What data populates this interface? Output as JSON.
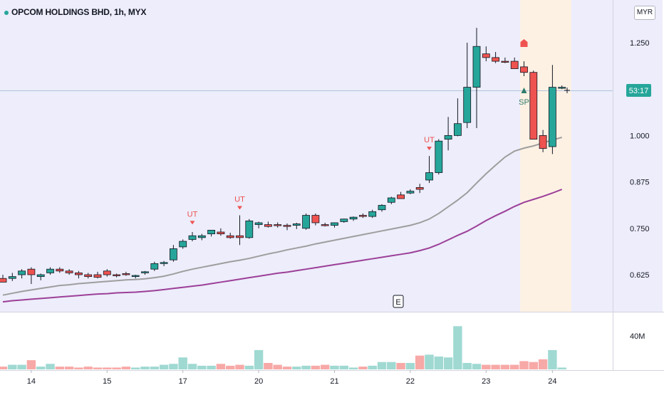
{
  "header": {
    "title": "OPCOM HOLDINGS BHD, 1h, MYX",
    "currency": "MYR"
  },
  "price_axis": {
    "ticks": [
      "1.250",
      "1.000",
      "0.875",
      "0.750",
      "0.625"
    ],
    "countdown": "53:17"
  },
  "volume_axis": {
    "tick": "40M"
  },
  "time_axis": {
    "ticks": [
      "14",
      "15",
      "17",
      "20",
      "21",
      "22",
      "23",
      "24"
    ]
  },
  "markers": {
    "ut": "UT",
    "sp": "SP",
    "event": "E"
  },
  "colors": {
    "up": "#26a69a",
    "down": "#ef5350",
    "ma_fast": "#9e9e9e",
    "ma_slow": "#9c3f98",
    "bg_main": "#ededfb",
    "bg_highlight": "#fdf1e4",
    "crosshair": "#b0c4de"
  },
  "chart_data": {
    "type": "candlestick",
    "title": "OPCOM HOLDINGS BHD, 1h, MYX",
    "y_range": [
      0.56,
      1.32
    ],
    "series": [
      {
        "name": "",
        "type": "ohlc",
        "values": [
          [
            0.615,
            0.625,
            0.608,
            0.605
          ],
          [
            0.615,
            0.63,
            0.608,
            0.62
          ],
          [
            0.625,
            0.64,
            0.615,
            0.635
          ],
          [
            0.64,
            0.645,
            0.6,
            0.625
          ],
          [
            0.62,
            0.628,
            0.61,
            0.625
          ],
          [
            0.63,
            0.645,
            0.625,
            0.64
          ],
          [
            0.64,
            0.645,
            0.63,
            0.635
          ],
          [
            0.635,
            0.64,
            0.625,
            0.63
          ],
          [
            0.63,
            0.635,
            0.615,
            0.625
          ],
          [
            0.625,
            0.63,
            0.615,
            0.62
          ],
          [
            0.625,
            0.633,
            0.615,
            0.618
          ],
          [
            0.635,
            0.64,
            0.62,
            0.625
          ],
          [
            0.625,
            0.628,
            0.618,
            0.623
          ],
          [
            0.628,
            0.633,
            0.622,
            0.625
          ],
          [
            0.62,
            0.625,
            0.615,
            0.623
          ],
          [
            0.63,
            0.635,
            0.625,
            0.633
          ],
          [
            0.64,
            0.66,
            0.635,
            0.655
          ],
          [
            0.655,
            0.662,
            0.648,
            0.658
          ],
          [
            0.665,
            0.705,
            0.66,
            0.695
          ],
          [
            0.7,
            0.72,
            0.695,
            0.715
          ],
          [
            0.72,
            0.74,
            0.715,
            0.73
          ],
          [
            0.725,
            0.735,
            0.718,
            0.73
          ],
          [
            0.735,
            0.745,
            0.728,
            0.745
          ],
          [
            0.74,
            0.75,
            0.73,
            0.735
          ],
          [
            0.73,
            0.738,
            0.722,
            0.725
          ],
          [
            0.73,
            0.785,
            0.705,
            0.725
          ],
          [
            0.725,
            0.775,
            0.722,
            0.77
          ],
          [
            0.76,
            0.768,
            0.75,
            0.765
          ],
          [
            0.76,
            0.768,
            0.752,
            0.755
          ],
          [
            0.76,
            0.766,
            0.752,
            0.758
          ],
          [
            0.758,
            0.763,
            0.745,
            0.755
          ],
          [
            0.758,
            0.765,
            0.748,
            0.762
          ],
          [
            0.75,
            0.79,
            0.746,
            0.785
          ],
          [
            0.785,
            0.79,
            0.758,
            0.765
          ],
          [
            0.76,
            0.765,
            0.755,
            0.758
          ],
          [
            0.758,
            0.766,
            0.752,
            0.765
          ],
          [
            0.768,
            0.776,
            0.765,
            0.775
          ],
          [
            0.775,
            0.782,
            0.77,
            0.78
          ],
          [
            0.785,
            0.79,
            0.778,
            0.782
          ],
          [
            0.782,
            0.8,
            0.778,
            0.795
          ],
          [
            0.8,
            0.815,
            0.795,
            0.812
          ],
          [
            0.82,
            0.835,
            0.815,
            0.832
          ],
          [
            0.84,
            0.848,
            0.83,
            0.83
          ],
          [
            0.845,
            0.855,
            0.842,
            0.85
          ],
          [
            0.86,
            0.87,
            0.845,
            0.855
          ],
          [
            0.88,
            0.945,
            0.872,
            0.9
          ],
          [
            0.9,
            0.99,
            0.895,
            0.985
          ],
          [
            0.99,
            1.05,
            0.96,
            1.0
          ],
          [
            1.0,
            1.1,
            0.998,
            1.032
          ],
          [
            1.035,
            1.25,
            1.02,
            1.13
          ],
          [
            1.13,
            1.29,
            1.02,
            1.24
          ],
          [
            1.22,
            1.24,
            1.2,
            1.21
          ],
          [
            1.21,
            1.225,
            1.195,
            1.2
          ],
          [
            1.2,
            1.21,
            1.195,
            1.198
          ],
          [
            1.2,
            1.21,
            1.18,
            1.18
          ],
          [
            1.185,
            1.2,
            1.16,
            1.17
          ],
          [
            1.17,
            1.175,
            0.995,
            0.99
          ],
          [
            1.0,
            1.015,
            0.955,
            0.965
          ],
          [
            0.97,
            1.19,
            0.95,
            1.13
          ],
          [
            1.13,
            1.135,
            1.125,
            1.13
          ]
        ]
      },
      {
        "name": "",
        "type": "line",
        "values": [
          0.57,
          0.575,
          0.58,
          0.584,
          0.588,
          0.592,
          0.596,
          0.598,
          0.601,
          0.603,
          0.605,
          0.607,
          0.609,
          0.611,
          0.612,
          0.614,
          0.617,
          0.621,
          0.627,
          0.634,
          0.64,
          0.645,
          0.65,
          0.655,
          0.66,
          0.664,
          0.669,
          0.675,
          0.681,
          0.686,
          0.692,
          0.697,
          0.702,
          0.708,
          0.713,
          0.718,
          0.723,
          0.728,
          0.733,
          0.738,
          0.743,
          0.748,
          0.753,
          0.758,
          0.765,
          0.775,
          0.79,
          0.808,
          0.826,
          0.846,
          0.872,
          0.897,
          0.92,
          0.942,
          0.958,
          0.966,
          0.972,
          0.98,
          0.988,
          0.995
        ]
      },
      {
        "name": "",
        "type": "line",
        "values": [
          0.552,
          0.555,
          0.557,
          0.559,
          0.561,
          0.563,
          0.565,
          0.567,
          0.569,
          0.571,
          0.573,
          0.574,
          0.576,
          0.577,
          0.578,
          0.58,
          0.582,
          0.585,
          0.588,
          0.591,
          0.594,
          0.597,
          0.601,
          0.605,
          0.609,
          0.613,
          0.617,
          0.621,
          0.625,
          0.629,
          0.632,
          0.636,
          0.64,
          0.644,
          0.648,
          0.652,
          0.656,
          0.66,
          0.664,
          0.668,
          0.672,
          0.676,
          0.68,
          0.684,
          0.69,
          0.697,
          0.707,
          0.719,
          0.731,
          0.742,
          0.756,
          0.771,
          0.784,
          0.796,
          0.809,
          0.82,
          0.828,
          0.836,
          0.845,
          0.855
        ]
      }
    ],
    "volume": [
      3,
      5,
      5,
      10,
      3,
      6,
      3,
      3,
      2,
      3,
      2,
      2,
      2,
      3,
      2,
      3,
      3,
      5,
      6,
      13,
      6,
      4,
      4,
      6,
      4,
      5,
      4,
      21,
      7,
      5,
      3,
      3,
      4,
      4,
      5,
      4,
      4,
      2,
      3,
      4,
      8,
      8,
      7,
      7,
      15,
      16,
      14,
      13,
      47,
      7,
      6,
      5,
      5,
      5,
      5,
      9,
      8,
      11,
      21,
      2
    ],
    "volume_range": [
      0,
      55
    ]
  }
}
